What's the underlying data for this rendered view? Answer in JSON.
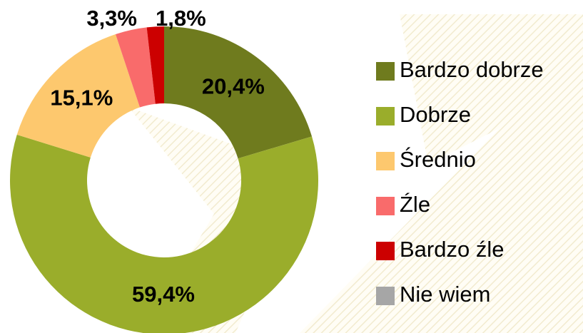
{
  "chart_data": {
    "type": "donut",
    "categories": [
      "Bardzo dobrze",
      "Dobrze",
      "Średnio",
      "Źle",
      "Bardzo źle",
      "Nie wiem"
    ],
    "values": [
      20.4,
      59.4,
      15.1,
      3.3,
      1.8,
      0
    ],
    "value_labels": [
      "20,4%",
      "59,4%",
      "15,1%",
      "3,3%",
      "1,8%",
      null
    ],
    "colors": [
      "#6f7b1e",
      "#9aad2b",
      "#fdc86e",
      "#f96b6b",
      "#cc0000",
      "#a6a6a6"
    ],
    "legend": "right"
  }
}
